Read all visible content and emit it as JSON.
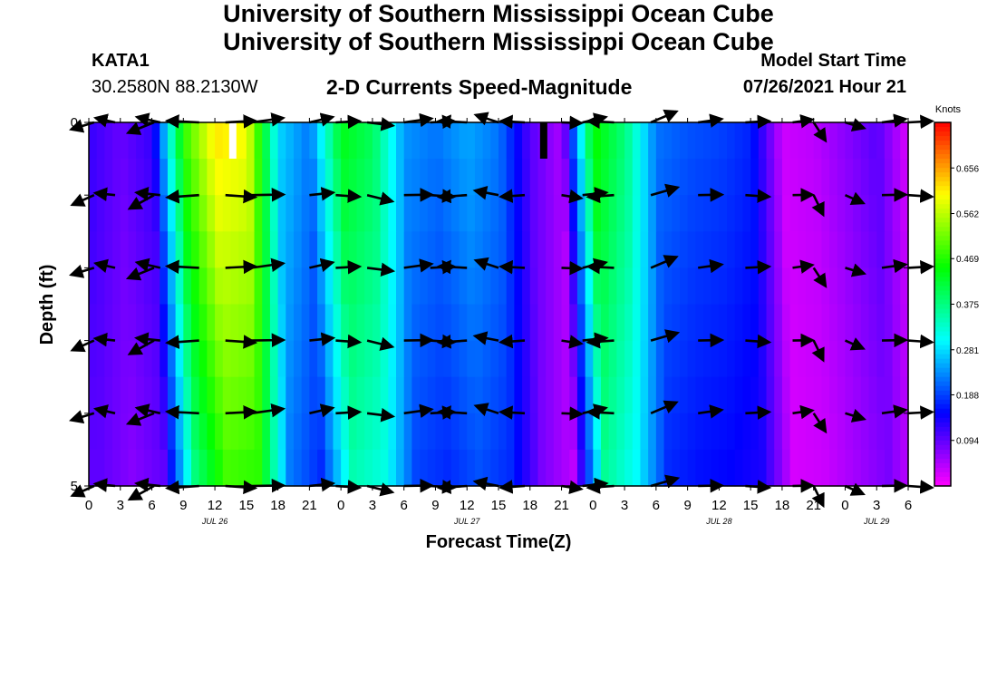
{
  "header": {
    "title": "University of Southern Mississippi Ocean Cube",
    "footer_title": "University of Southern Mississippi Ocean Cube",
    "station": "KATA1",
    "coordinates": "30.2580N  88.2130W",
    "plot_title": "2-D Currents Speed-Magnitude",
    "model_start_label": "Model Start Time",
    "model_start_value": "07/26/2021 Hour 21"
  },
  "chart_data": {
    "type": "heatmap",
    "title": "2-D Currents Speed-Magnitude",
    "xlabel": "Forecast Time(Z)",
    "ylabel": "Depth (ft)",
    "x_tick_labels": [
      "0",
      "3",
      "6",
      "9",
      "12",
      "15",
      "18",
      "21",
      "0",
      "3",
      "6",
      "9",
      "12",
      "15",
      "18",
      "21",
      "0",
      "3",
      "6",
      "9",
      "12",
      "15",
      "18",
      "21",
      "0",
      "3",
      "6"
    ],
    "date_labels": [
      {
        "label": "JUL 26",
        "hour_index": 12
      },
      {
        "label": "JUL 27",
        "hour_index": 36
      },
      {
        "label": "JUL 28",
        "hour_index": 60
      },
      {
        "label": "JUL 29",
        "hour_index": 75
      }
    ],
    "y_tick_labels": [
      "0",
      "5"
    ],
    "ylim": [
      0,
      5
    ],
    "x_hours_range": [
      0,
      78
    ],
    "colorbar": {
      "unit_label": "Knots",
      "tick_labels": [
        "0.656",
        "0.562",
        "0.469",
        "0.375",
        "0.281",
        "0.188",
        "0.094"
      ],
      "range": [
        0,
        0.75
      ]
    },
    "time_hours": [
      0,
      3,
      6,
      9,
      12,
      15,
      18,
      21,
      24,
      27,
      30,
      33,
      36,
      39,
      42,
      45,
      48,
      51,
      54,
      57,
      60,
      63,
      66,
      69,
      72,
      75,
      78
    ],
    "speed_profile": [
      0.12,
      0.09,
      0.12,
      0.48,
      0.62,
      0.6,
      0.28,
      0.22,
      0.44,
      0.4,
      0.24,
      0.22,
      0.25,
      0.22,
      0.1,
      0.05,
      0.46,
      0.38,
      0.22,
      0.2,
      0.19,
      0.17,
      0.03,
      0.04,
      0.07,
      0.1,
      0.02
    ],
    "markers": [
      {
        "hour": 13.7,
        "color": "#ffffff"
      },
      {
        "hour": 43.3,
        "color": "#000000"
      }
    ],
    "vector_rows_depth": [
      0,
      1,
      2,
      3,
      4,
      5
    ],
    "vector_hours": [
      0.5,
      2.5,
      6.2,
      6.8,
      10.5,
      13.0,
      15.5,
      21.0,
      23.5,
      26.5,
      30.0,
      32.5,
      36.0,
      39.0,
      41.5,
      45.0,
      47.0,
      50.0,
      53.5,
      58.0,
      62.5,
      67.0,
      69.0,
      72.0,
      75.5,
      78.0
    ],
    "vector_angles_deg": [
      20,
      -10,
      25,
      -10,
      0,
      0,
      -5,
      -10,
      0,
      10,
      -5,
      0,
      0,
      -15,
      0,
      5,
      -10,
      0,
      -20,
      -5,
      0,
      -5,
      60,
      20,
      -5,
      0
    ],
    "vector_length_knots": [
      0.12,
      0.1,
      0.14,
      0.12,
      0.16,
      0.15,
      0.16,
      0.12,
      0.12,
      0.13,
      0.14,
      0.12,
      0.14,
      0.12,
      0.12,
      0.1,
      0.12,
      0.13,
      0.14,
      0.12,
      0.12,
      0.1,
      0.11,
      0.1,
      0.12,
      0.12
    ]
  }
}
